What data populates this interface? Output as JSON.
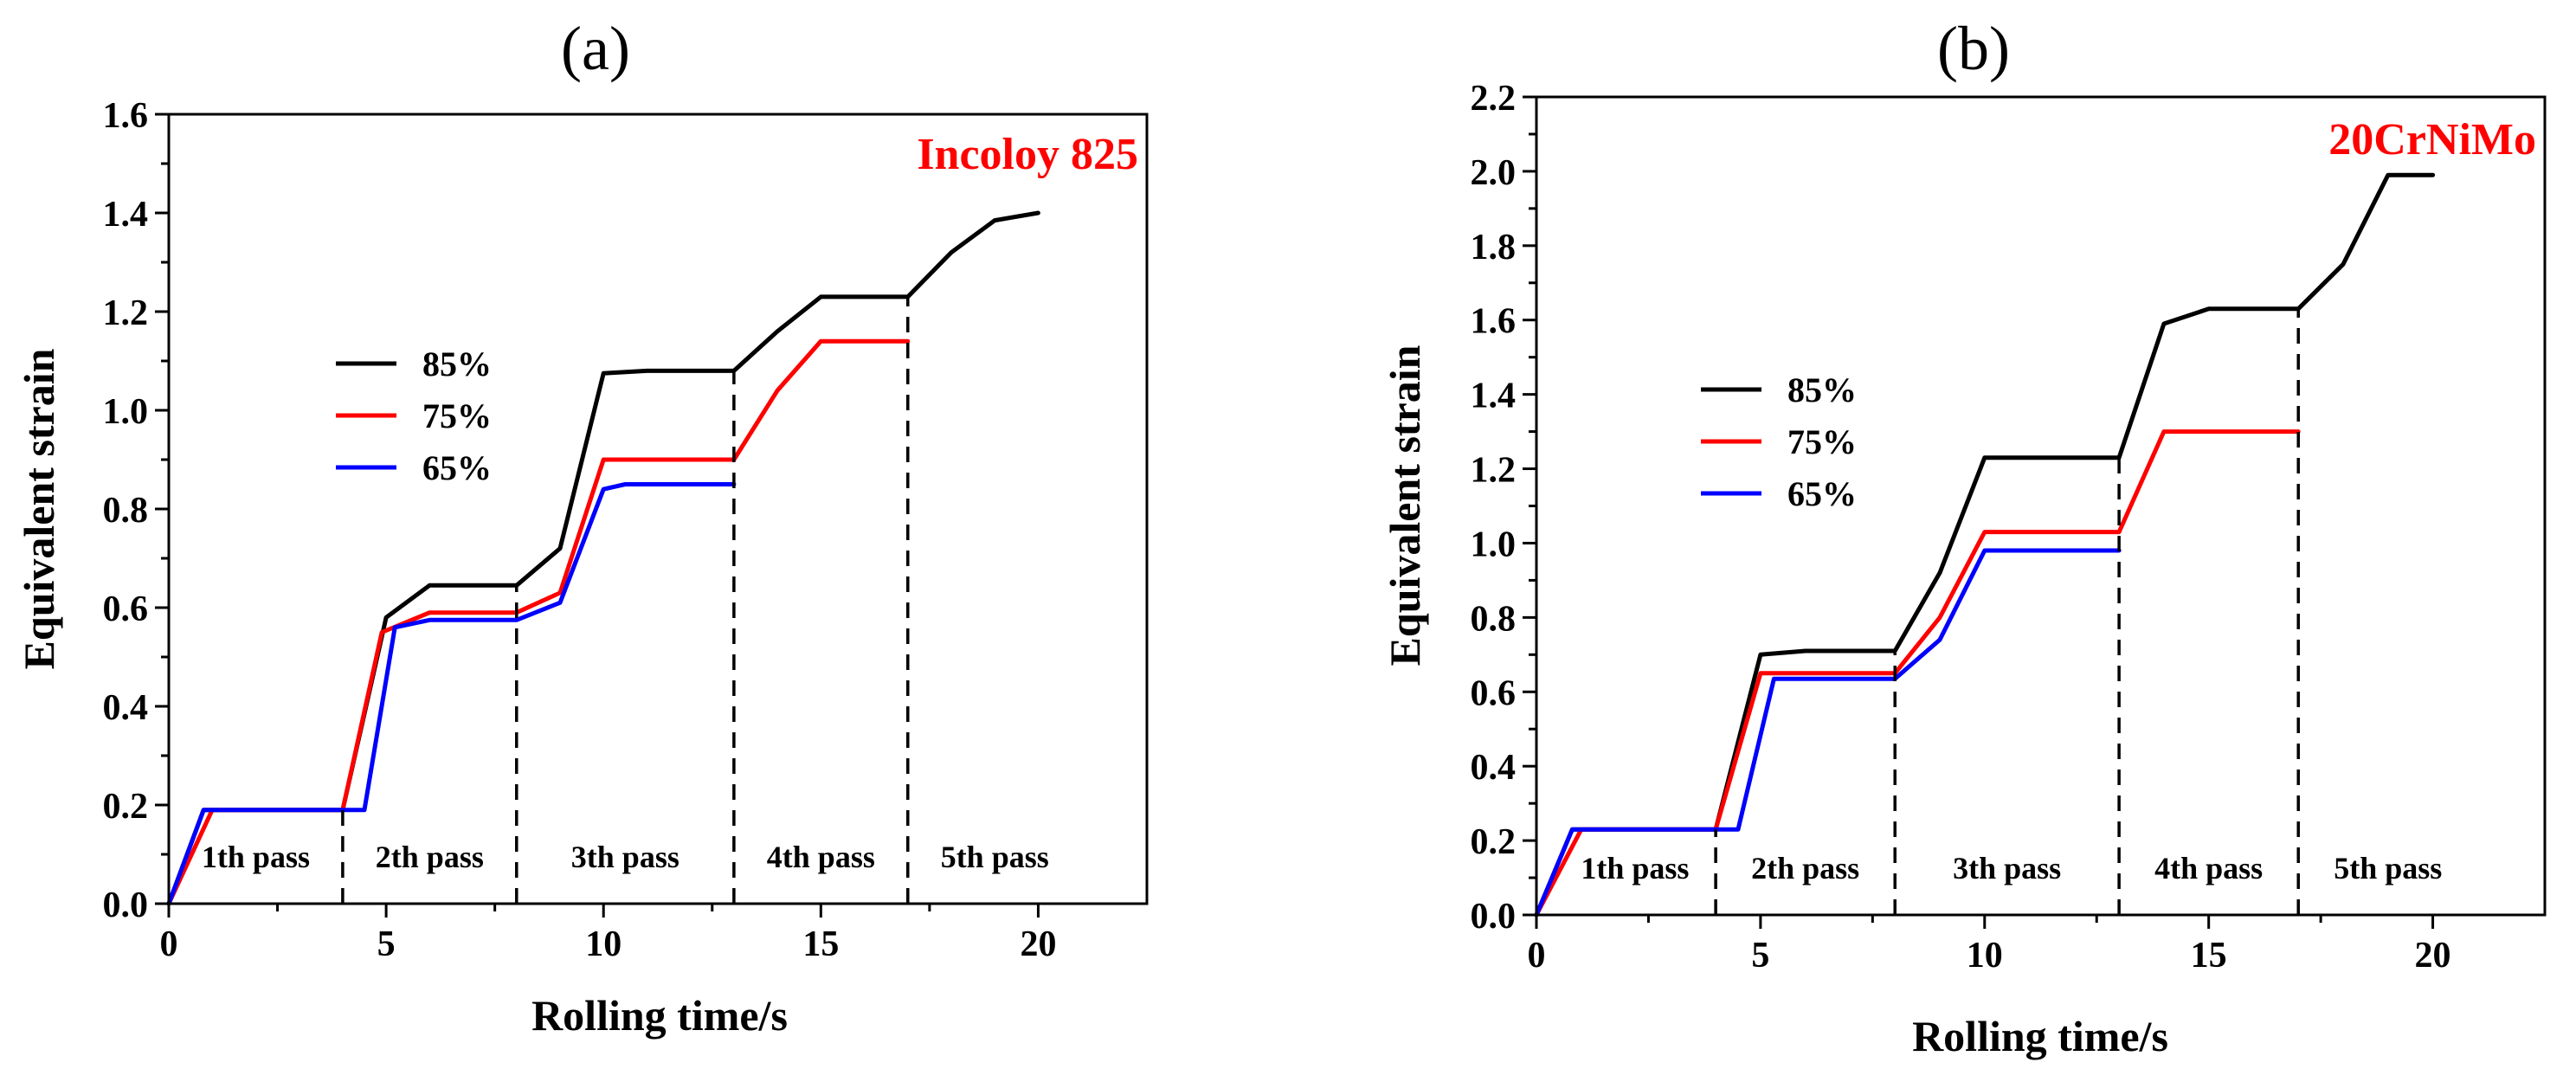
{
  "chart_data": [
    {
      "type": "line",
      "panel_label": "(a)",
      "annotation": "Incoloy 825",
      "annotation_color": "#ff0000",
      "xlabel": "Rolling time/s",
      "ylabel": "Equivalent strain",
      "xlim": [
        0,
        22.5
      ],
      "ylim": [
        0,
        1.6
      ],
      "xticks": [
        0,
        5,
        10,
        15,
        20
      ],
      "xtick_labels": [
        "0",
        "5",
        "10",
        "15",
        "20"
      ],
      "yticks": [
        0,
        0.2,
        0.4,
        0.6,
        0.8,
        1.0,
        1.2,
        1.4,
        1.6
      ],
      "ytick_labels": [
        "0.0",
        "0.2",
        "0.4",
        "0.6",
        "0.8",
        "1.0",
        "1.2",
        "1.4",
        "1.6"
      ],
      "pass_boundaries": [
        4,
        8,
        13,
        17
      ],
      "pass_labels": [
        {
          "text": "1th pass",
          "x": 2.0
        },
        {
          "text": "2th pass",
          "x": 6.0
        },
        {
          "text": "3th pass",
          "x": 10.5
        },
        {
          "text": "4th pass",
          "x": 15.0
        },
        {
          "text": "5th pass",
          "x": 19.0
        }
      ],
      "legend": {
        "placement": "center-left"
      },
      "series": [
        {
          "name": "85%",
          "color": "#000000",
          "x": [
            0,
            0.8,
            4,
            5,
            6,
            8,
            9,
            10,
            11,
            13,
            14,
            15,
            17,
            18,
            19,
            20
          ],
          "y": [
            0,
            0.19,
            0.19,
            0.58,
            0.645,
            0.645,
            0.72,
            1.075,
            1.08,
            1.08,
            1.16,
            1.23,
            1.23,
            1.32,
            1.385,
            1.4
          ]
        },
        {
          "name": "75%",
          "color": "#ff0000",
          "x": [
            0,
            1.0,
            4,
            4.9,
            6,
            8,
            9,
            10,
            13,
            14,
            15,
            17
          ],
          "y": [
            0,
            0.19,
            0.19,
            0.55,
            0.59,
            0.59,
            0.63,
            0.9,
            0.9,
            1.04,
            1.14,
            1.14
          ]
        },
        {
          "name": "65%",
          "color": "#0000ff",
          "x": [
            0,
            0.8,
            4.5,
            5.2,
            6,
            8,
            9,
            10,
            10.5,
            13
          ],
          "y": [
            0,
            0.19,
            0.19,
            0.56,
            0.575,
            0.575,
            0.61,
            0.84,
            0.85,
            0.85
          ]
        }
      ]
    },
    {
      "type": "line",
      "panel_label": "(b)",
      "annotation": "20CrNiMo",
      "annotation_color": "#ff0000",
      "xlabel": "Rolling time/s",
      "ylabel": "Equivalent strain",
      "xlim": [
        0,
        22.5
      ],
      "ylim": [
        0,
        2.2
      ],
      "xticks": [
        0,
        5,
        10,
        15,
        20
      ],
      "xtick_labels": [
        "0",
        "5",
        "10",
        "15",
        "20"
      ],
      "yticks": [
        0,
        0.2,
        0.4,
        0.6,
        0.8,
        1.0,
        1.2,
        1.4,
        1.6,
        1.8,
        2.0,
        2.2
      ],
      "ytick_labels": [
        "0.0",
        "0.2",
        "0.4",
        "0.6",
        "0.8",
        "1.0",
        "1.2",
        "1.4",
        "1.6",
        "1.8",
        "2.0",
        "2.2"
      ],
      "pass_boundaries": [
        4,
        8,
        13,
        17
      ],
      "pass_labels": [
        {
          "text": "1th pass",
          "x": 2.2
        },
        {
          "text": "2th pass",
          "x": 6.0
        },
        {
          "text": "3th pass",
          "x": 10.5
        },
        {
          "text": "4th pass",
          "x": 15.0
        },
        {
          "text": "5th pass",
          "x": 19.0
        }
      ],
      "legend": {
        "placement": "center-left"
      },
      "series": [
        {
          "name": "85%",
          "color": "#000000",
          "x": [
            0,
            0.8,
            4,
            5,
            6,
            8,
            9,
            10,
            11,
            13,
            14,
            15,
            17,
            18,
            19,
            20
          ],
          "y": [
            0,
            0.23,
            0.23,
            0.7,
            0.71,
            0.71,
            0.92,
            1.23,
            1.23,
            1.23,
            1.59,
            1.63,
            1.63,
            1.75,
            1.99,
            1.99
          ]
        },
        {
          "name": "75%",
          "color": "#ff0000",
          "x": [
            0,
            1.0,
            4,
            5,
            6,
            8,
            9,
            10,
            13,
            14,
            15,
            17
          ],
          "y": [
            0,
            0.23,
            0.23,
            0.65,
            0.65,
            0.65,
            0.8,
            1.03,
            1.03,
            1.3,
            1.3,
            1.3
          ]
        },
        {
          "name": "65%",
          "color": "#0000ff",
          "x": [
            0,
            0.8,
            4.5,
            5.3,
            6,
            8,
            9,
            10,
            11,
            13
          ],
          "y": [
            0,
            0.23,
            0.23,
            0.635,
            0.635,
            0.635,
            0.74,
            0.98,
            0.98,
            0.98
          ]
        }
      ]
    }
  ]
}
